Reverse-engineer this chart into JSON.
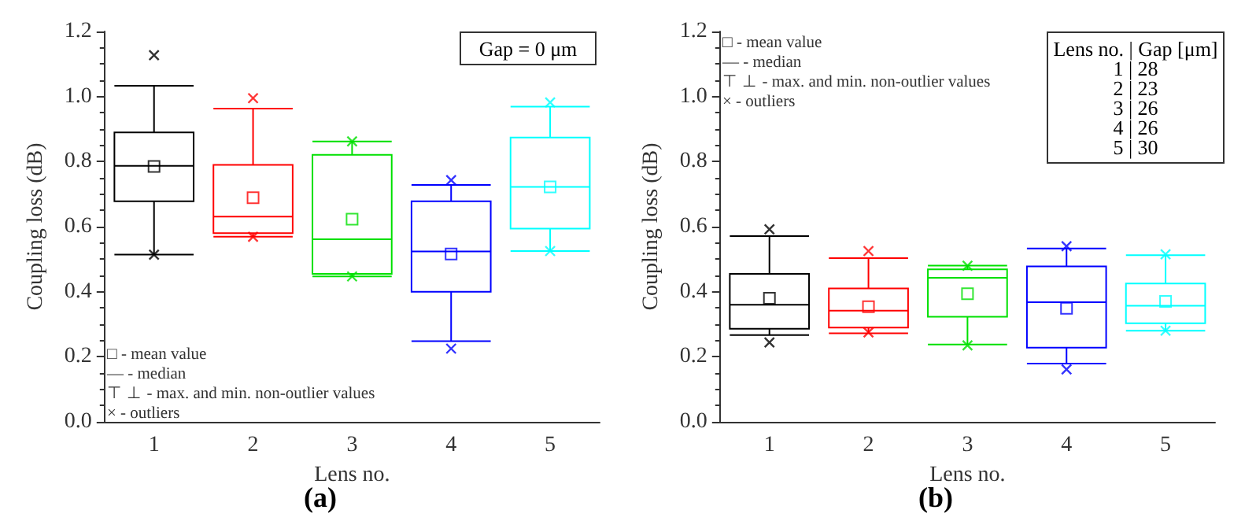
{
  "chart_data": [
    {
      "type": "box",
      "title": "(a)",
      "xlabel": "Lens no.",
      "ylabel": "Coupling loss (dB)",
      "categories": [
        "1",
        "2",
        "3",
        "4",
        "5"
      ],
      "colors": [
        "#000000",
        "#ff0000",
        "#00e000",
        "#0000ff",
        "#00ffff"
      ],
      "boxes": [
        {
          "low": 0.514,
          "q1": 0.678,
          "median": 0.787,
          "q3": 0.89,
          "high": 1.033,
          "mean": 0.785,
          "outliers": [
            1.127,
            0.514
          ]
        },
        {
          "low": 0.569,
          "q1": 0.58,
          "median": 0.631,
          "q3": 0.79,
          "high": 0.963,
          "mean": 0.689,
          "outliers": [
            0.995,
            0.569
          ]
        },
        {
          "low": 0.447,
          "q1": 0.455,
          "median": 0.561,
          "q3": 0.821,
          "high": 0.862,
          "mean": 0.623,
          "outliers": [
            0.862,
            0.447
          ]
        },
        {
          "low": 0.248,
          "q1": 0.4,
          "median": 0.524,
          "q3": 0.678,
          "high": 0.728,
          "mean": 0.516,
          "outliers": [
            0.743,
            0.225
          ]
        },
        {
          "low": 0.525,
          "q1": 0.594,
          "median": 0.722,
          "q3": 0.874,
          "high": 0.969,
          "mean": 0.722,
          "outliers": [
            0.982,
            0.525
          ]
        }
      ],
      "ylim": [
        0,
        1.2
      ],
      "yticks": [
        {
          "value": 0,
          "label": "0.0"
        },
        {
          "value": 0.2,
          "label": "0.2"
        },
        {
          "value": 0.4,
          "label": "0.4"
        },
        {
          "value": 0.6,
          "label": "0.6"
        },
        {
          "value": 0.8,
          "label": "0.8"
        },
        {
          "value": 1,
          "label": "1.0"
        },
        {
          "value": 1.2,
          "label": "1.2"
        }
      ],
      "grid": false,
      "annotations": [
        "□ - mean value",
        "— - median",
        "⊤ ⊥ - max. and min. non-outlier values",
        "× - outliers",
        "Gap = 0 μm"
      ]
    },
    {
      "type": "box",
      "title": "(b)",
      "xlabel": "Lens no.",
      "ylabel": "Coupling loss (dB)",
      "categories": [
        "1",
        "2",
        "3",
        "4",
        "5"
      ],
      "colors": [
        "#000000",
        "#ff0000",
        "#00e000",
        "#0000ff",
        "#00ffff"
      ],
      "boxes": [
        {
          "low": 0.267,
          "q1": 0.286,
          "median": 0.36,
          "q3": 0.455,
          "high": 0.571,
          "mean": 0.38,
          "outliers": [
            0.592,
            0.244
          ]
        },
        {
          "low": 0.272,
          "q1": 0.29,
          "median": 0.342,
          "q3": 0.41,
          "high": 0.503,
          "mean": 0.354,
          "outliers": [
            0.525,
            0.275
          ]
        },
        {
          "low": 0.238,
          "q1": 0.323,
          "median": 0.443,
          "q3": 0.469,
          "high": 0.48,
          "mean": 0.394,
          "outliers": [
            0.48,
            0.235
          ]
        },
        {
          "low": 0.179,
          "q1": 0.228,
          "median": 0.368,
          "q3": 0.478,
          "high": 0.533,
          "mean": 0.349,
          "outliers": [
            0.54,
            0.161
          ]
        },
        {
          "low": 0.28,
          "q1": 0.303,
          "median": 0.357,
          "q3": 0.425,
          "high": 0.512,
          "mean": 0.37,
          "outliers": [
            0.515,
            0.28
          ]
        }
      ],
      "ylim": [
        0,
        1.2
      ],
      "yticks": [
        {
          "value": 0,
          "label": "0.0"
        },
        {
          "value": 0.2,
          "label": "0.2"
        },
        {
          "value": 0.4,
          "label": "0.4"
        },
        {
          "value": 0.6,
          "label": "0.6"
        },
        {
          "value": 0.8,
          "label": "0.8"
        },
        {
          "value": 1,
          "label": "1.0"
        },
        {
          "value": 1.2,
          "label": "1.2"
        }
      ],
      "grid": false,
      "annotations": [
        "□ - mean value",
        "— - median",
        "⊤ ⊥ - max. and min. non-outlier values",
        "× - outliers",
        "Lens no. | Gap [μm]",
        "1 | 28",
        "2 | 23",
        "3 | 26",
        "4 | 26",
        "5 | 30"
      ]
    }
  ]
}
